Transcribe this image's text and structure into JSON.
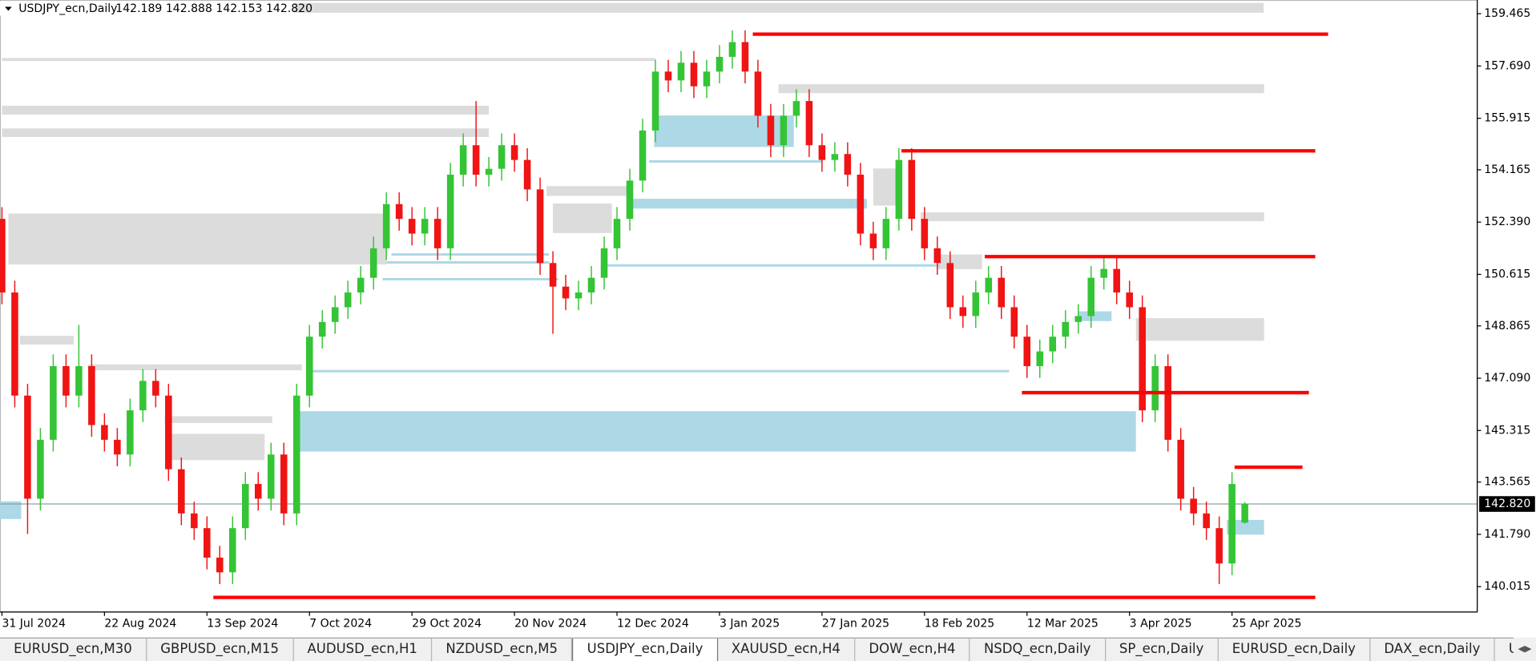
{
  "header": {
    "symbol": "USDJPY_ecn,Daily",
    "ohlc": "142.189 142.888 142.153 142.820"
  },
  "chart_data": {
    "type": "candlestick",
    "x": [
      "31 Jul 2024",
      null,
      null,
      null,
      null,
      null,
      null,
      null,
      "22 Aug 2024",
      null,
      null,
      null,
      null,
      null,
      null,
      null,
      "13 Sep 2024",
      null,
      null,
      null,
      null,
      null,
      null,
      null,
      "7 Oct 2024",
      null,
      null,
      null,
      null,
      null,
      null,
      null,
      "29 Oct 2024",
      null,
      null,
      null,
      null,
      null,
      null,
      null,
      "20 Nov 2024",
      null,
      null,
      null,
      null,
      null,
      null,
      null,
      "12 Dec 2024",
      null,
      null,
      null,
      null,
      null,
      null,
      null,
      "3 Jan 2025",
      null,
      null,
      null,
      null,
      null,
      null,
      null,
      "27 Jan 2025",
      null,
      null,
      null,
      null,
      null,
      null,
      null,
      "18 Feb 2025",
      null,
      null,
      null,
      null,
      null,
      null,
      null,
      "12 Mar 2025",
      null,
      null,
      null,
      null,
      null,
      null,
      null,
      "3 Apr 2025",
      null,
      null,
      null,
      null,
      null,
      null,
      null,
      "25 Apr 2025",
      null
    ],
    "open": [
      152.5,
      150.0,
      146.5,
      143.0,
      145.0,
      147.5,
      146.5,
      147.5,
      145.5,
      145.0,
      144.5,
      146.0,
      147.0,
      146.5,
      144.0,
      142.5,
      142.0,
      141.0,
      140.5,
      142.0,
      143.5,
      143.0,
      144.5,
      142.5,
      146.5,
      148.5,
      149.0,
      149.5,
      150.0,
      150.5,
      151.5,
      153.0,
      152.5,
      152.0,
      152.5,
      151.5,
      154.0,
      155.0,
      154.0,
      154.2,
      155.0,
      154.5,
      153.5,
      151.0,
      150.2,
      149.8,
      150.0,
      150.5,
      151.5,
      152.5,
      153.8,
      155.5,
      157.5,
      157.2,
      157.8,
      157.0,
      157.5,
      158.0,
      158.5,
      157.5,
      156.0,
      155.0,
      156.0,
      156.5,
      155.0,
      154.5,
      154.7,
      154.0,
      152.0,
      151.5,
      152.5,
      154.5,
      152.5,
      151.5,
      151.0,
      149.5,
      149.2,
      150.0,
      150.5,
      149.5,
      148.5,
      147.5,
      148.0,
      148.5,
      149.0,
      149.2,
      150.5,
      150.8,
      150.0,
      149.5,
      146.0,
      147.5,
      145.0,
      143.0,
      142.5,
      142.0,
      140.8,
      142.189
    ],
    "high": [
      152.9,
      150.4,
      146.9,
      145.4,
      147.9,
      147.9,
      148.9,
      147.9,
      145.9,
      145.4,
      146.4,
      147.4,
      147.4,
      146.9,
      144.4,
      142.9,
      142.4,
      141.4,
      142.4,
      143.9,
      143.9,
      144.9,
      144.9,
      146.9,
      148.9,
      149.4,
      149.9,
      150.4,
      150.9,
      151.9,
      153.4,
      153.4,
      152.9,
      152.9,
      152.9,
      154.4,
      155.4,
      156.5,
      154.6,
      155.4,
      155.4,
      154.9,
      153.9,
      151.4,
      150.6,
      150.4,
      150.9,
      151.9,
      152.9,
      154.2,
      155.9,
      157.9,
      157.9,
      158.2,
      158.2,
      157.9,
      158.4,
      158.9,
      158.9,
      157.9,
      156.4,
      156.4,
      156.9,
      156.9,
      155.4,
      155.1,
      155.1,
      154.4,
      152.4,
      152.9,
      154.9,
      154.9,
      152.9,
      151.9,
      151.4,
      149.9,
      150.4,
      150.9,
      150.9,
      149.9,
      148.9,
      148.4,
      148.9,
      149.4,
      149.6,
      150.9,
      151.2,
      151.2,
      150.4,
      149.9,
      147.9,
      147.9,
      145.4,
      143.4,
      142.9,
      142.4,
      143.9,
      142.888
    ],
    "low": [
      149.6,
      146.1,
      141.8,
      142.6,
      144.6,
      146.1,
      146.1,
      145.1,
      144.6,
      144.1,
      144.1,
      145.6,
      146.1,
      143.6,
      142.1,
      141.6,
      140.6,
      140.1,
      140.1,
      141.6,
      142.6,
      142.6,
      142.1,
      142.1,
      146.1,
      148.1,
      148.6,
      149.1,
      149.6,
      150.1,
      151.1,
      152.1,
      151.6,
      151.6,
      151.1,
      151.1,
      153.6,
      153.6,
      153.6,
      153.8,
      154.1,
      153.1,
      150.6,
      148.6,
      149.4,
      149.4,
      149.6,
      150.1,
      151.1,
      152.1,
      153.4,
      155.1,
      156.8,
      156.8,
      156.6,
      156.6,
      157.1,
      157.6,
      157.1,
      155.6,
      154.6,
      154.6,
      155.6,
      154.6,
      154.1,
      154.1,
      153.6,
      151.6,
      151.1,
      151.1,
      152.1,
      152.1,
      151.1,
      150.6,
      149.1,
      148.8,
      148.8,
      149.6,
      149.1,
      148.1,
      147.1,
      147.1,
      147.6,
      148.1,
      148.6,
      148.8,
      150.1,
      149.6,
      149.1,
      145.6,
      145.6,
      144.6,
      142.6,
      142.1,
      141.6,
      140.1,
      140.4,
      142.153
    ],
    "close": [
      150.0,
      146.5,
      143.0,
      145.0,
      147.5,
      146.5,
      147.5,
      145.5,
      145.0,
      144.5,
      146.0,
      147.0,
      146.5,
      144.0,
      142.5,
      142.0,
      141.0,
      140.5,
      142.0,
      143.5,
      143.0,
      144.5,
      142.5,
      146.5,
      148.5,
      149.0,
      149.5,
      150.0,
      150.5,
      151.5,
      153.0,
      152.5,
      152.0,
      152.5,
      151.5,
      154.0,
      155.0,
      154.0,
      154.2,
      155.0,
      154.5,
      153.5,
      151.0,
      150.2,
      149.8,
      150.0,
      150.5,
      151.5,
      152.5,
      153.8,
      155.5,
      157.5,
      157.2,
      157.8,
      157.0,
      157.5,
      158.0,
      158.5,
      157.5,
      156.0,
      155.0,
      156.0,
      156.5,
      155.0,
      154.5,
      154.7,
      154.0,
      152.0,
      151.5,
      152.5,
      154.5,
      152.5,
      151.5,
      151.0,
      149.5,
      149.2,
      150.0,
      150.5,
      149.5,
      148.5,
      147.5,
      148.0,
      148.5,
      149.0,
      149.2,
      150.5,
      150.8,
      150.0,
      149.5,
      146.0,
      147.5,
      145.0,
      143.0,
      142.5,
      142.0,
      140.8,
      143.5,
      142.82
    ],
    "up_color": "#35c435",
    "down_color": "#f01414",
    "ylim": [
      139.152,
      159.93
    ],
    "yticks": [
      159.465,
      {
        "value": 157.69,
        "label": "157.690"
      },
      155.915,
      154.165,
      {
        "value": 152.39,
        "label": "152.390"
      },
      150.615,
      148.865,
      {
        "value": 147.09,
        "label": "147.090"
      },
      145.315,
      143.565,
      {
        "value": 141.79,
        "label": "141.790"
      },
      140.015
    ],
    "last_price": {
      "value": 142.82,
      "label": "142.820"
    },
    "zones": [
      {
        "from": 0,
        "to": 51,
        "low": 157.86,
        "high": 157.96,
        "color": "#dcdcdc"
      },
      {
        "from": 0,
        "to": 38,
        "low": 156.04,
        "high": 156.34,
        "color": "#dcdcdc"
      },
      {
        "from": 0,
        "to": 38,
        "low": 155.28,
        "high": 155.57,
        "color": "#dcdcdc"
      },
      {
        "from": 0.5,
        "to": 30,
        "low": 150.95,
        "high": 152.68,
        "color": "#dcdcdc"
      },
      {
        "from": 60.6,
        "to": 98.5,
        "low": 156.77,
        "high": 157.07,
        "color": "#dcdcdc"
      },
      {
        "from": 42.5,
        "to": 48.8,
        "low": 153.28,
        "high": 153.61,
        "color": "#dcdcdc"
      },
      {
        "from": 43,
        "to": 47.6,
        "low": 152.02,
        "high": 153.02,
        "color": "#dcdcdc"
      },
      {
        "from": 68,
        "to": 70,
        "low": 152.95,
        "high": 154.21,
        "color": "#dcdcdc"
      },
      {
        "from": 71.7,
        "to": 98.5,
        "low": 152.42,
        "high": 152.72,
        "color": "#dcdcdc"
      },
      {
        "from": 73,
        "to": 76.5,
        "low": 150.79,
        "high": 151.29,
        "color": "#dcdcdc"
      },
      {
        "from": 88.5,
        "to": 98.5,
        "low": 148.36,
        "high": 149.13,
        "color": "#dcdcdc"
      },
      {
        "from": 1.4,
        "to": 5.6,
        "low": 148.23,
        "high": 148.53,
        "color": "#dcdcdc"
      },
      {
        "from": 6.7,
        "to": 23.4,
        "low": 147.36,
        "high": 147.56,
        "color": "#dcdcdc"
      },
      {
        "from": 12.7,
        "to": 21.1,
        "low": 145.57,
        "high": 145.8,
        "color": "#dcdcdc"
      },
      {
        "from": 13,
        "to": 20.5,
        "low": 144.31,
        "high": 145.2,
        "color": "#dcdcdc"
      },
      {
        "from": 50.9,
        "to": 61.8,
        "low": 154.94,
        "high": 156.01,
        "color": "#add8e6"
      },
      {
        "from": 49.2,
        "to": 67.5,
        "low": 152.85,
        "high": 153.18,
        "color": "#add8e6"
      },
      {
        "from": 23.2,
        "to": 88.5,
        "low": 144.6,
        "high": 145.97,
        "color": "#add8e6"
      },
      {
        "from": -0.2,
        "to": 1.5,
        "low": 142.31,
        "high": 142.91,
        "color": "#add8e6"
      },
      {
        "from": 95.6,
        "to": 98.5,
        "low": 141.78,
        "high": 142.28,
        "color": "#add8e6"
      },
      {
        "from": 84,
        "to": 86.6,
        "low": 149.03,
        "high": 149.36,
        "color": "#add8e6"
      }
    ],
    "support_lines": [
      {
        "from": 50.5,
        "to": 64,
        "price": 154.45,
        "color": "#add8e6"
      },
      {
        "from": 30.4,
        "to": 42.7,
        "price": 151.29,
        "color": "#add8e6"
      },
      {
        "from": 30,
        "to": 42.7,
        "price": 151.02,
        "color": "#add8e6"
      },
      {
        "from": 47.1,
        "to": 73.2,
        "price": 150.92,
        "color": "#add8e6"
      },
      {
        "from": 29.7,
        "to": 43.4,
        "price": 150.45,
        "color": "#add8e6"
      },
      {
        "from": 24.2,
        "to": 78.6,
        "price": 147.33,
        "color": "#add8e6"
      }
    ],
    "levels": [
      {
        "from": 58.6,
        "to": 103.5,
        "price": 158.77,
        "color": "#ff0000"
      },
      {
        "from": 70.2,
        "to": 102.5,
        "price": 154.81,
        "color": "#ff0000"
      },
      {
        "from": 76.7,
        "to": 102.5,
        "price": 151.22,
        "color": "#ff0000"
      },
      {
        "from": 79.6,
        "to": 102,
        "price": 146.6,
        "color": "#ff0000"
      },
      {
        "from": 96.2,
        "to": 101.5,
        "price": 144.07,
        "color": "#ff0000"
      },
      {
        "from": 16.5,
        "to": 102.5,
        "price": 139.65,
        "color": "#ff0000"
      }
    ]
  },
  "tabs": [
    "EURUSD_ecn,M30",
    "GBPUSD_ecn,M15",
    "AUDUSD_ecn,H1",
    "NZDUSD_ecn,M5",
    "USDJPY_ecn,Daily",
    "XAUUSD_ecn,H4",
    "DOW_ecn,H4",
    "NSDQ_ecn,Daily",
    "SP_ecn,Daily",
    "EURUSD_ecn,Daily",
    "DAX_ecn,Daily",
    "USDCAD_e"
  ],
  "active_tab": 4
}
